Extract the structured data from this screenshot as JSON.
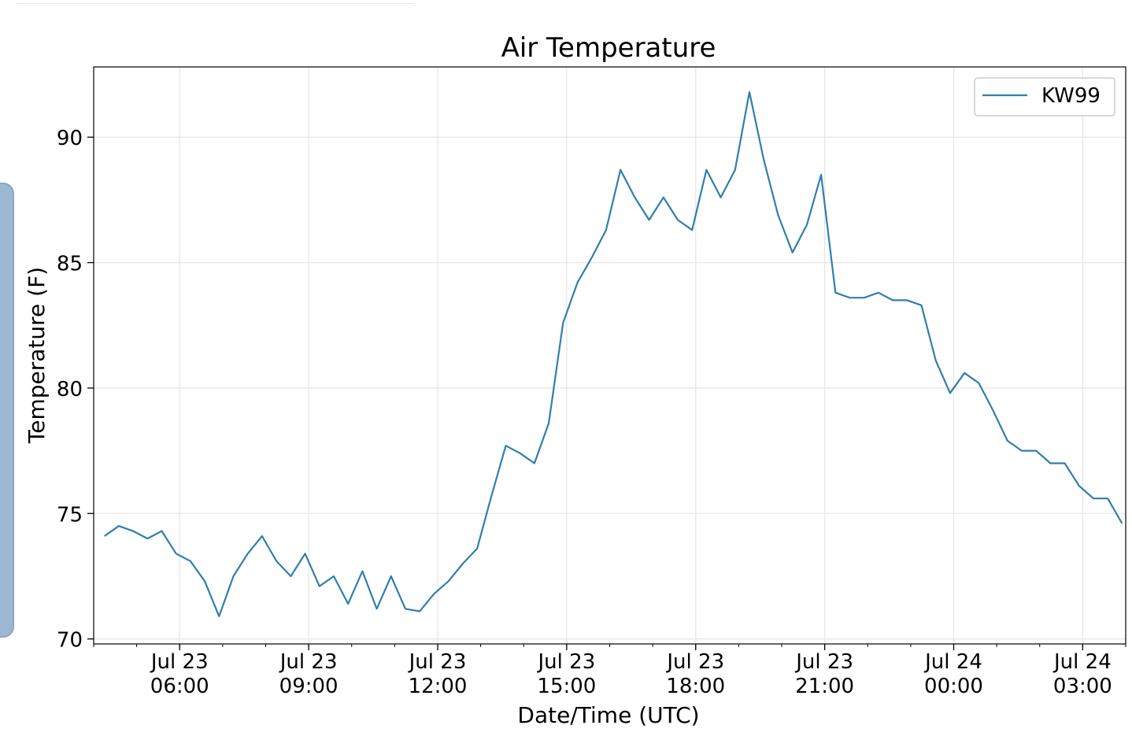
{
  "chart_data": {
    "type": "line",
    "title": "Air Temperature",
    "xlabel": "Date/Time (UTC)",
    "ylabel": "Temperature (F)",
    "xlim": [
      "2019-07-23 04:00",
      "2019-07-24 04:00"
    ],
    "ylim": [
      69.8,
      92.8
    ],
    "grid": true,
    "legend_position": "top-right",
    "line_color": "#2f7fad",
    "yticks": [
      {
        "value": 70,
        "label": "70"
      },
      {
        "value": 75,
        "label": "75"
      },
      {
        "value": 80,
        "label": "80"
      },
      {
        "value": 85,
        "label": "85"
      },
      {
        "value": 90,
        "label": "90"
      }
    ],
    "xticks": [
      {
        "time": "2019-07-23 06:00",
        "line1": "Jul 23",
        "line2": "06:00"
      },
      {
        "time": "2019-07-23 09:00",
        "line1": "Jul 23",
        "line2": "09:00"
      },
      {
        "time": "2019-07-23 12:00",
        "line1": "Jul 23",
        "line2": "12:00"
      },
      {
        "time": "2019-07-23 15:00",
        "line1": "Jul 23",
        "line2": "15:00"
      },
      {
        "time": "2019-07-23 18:00",
        "line1": "Jul 23",
        "line2": "18:00"
      },
      {
        "time": "2019-07-23 21:00",
        "line1": "Jul 23",
        "line2": "21:00"
      },
      {
        "time": "2019-07-24 00:00",
        "line1": "Jul 24",
        "line2": "00:00"
      },
      {
        "time": "2019-07-24 03:00",
        "line1": "Jul 24",
        "line2": "03:00"
      }
    ],
    "series": [
      {
        "name": "KW99",
        "points": [
          [
            "2019-07-23 04:15",
            74.1
          ],
          [
            "2019-07-23 04:35",
            74.5
          ],
          [
            "2019-07-23 04:55",
            74.3
          ],
          [
            "2019-07-23 05:15",
            74.0
          ],
          [
            "2019-07-23 05:35",
            74.3
          ],
          [
            "2019-07-23 05:55",
            73.4
          ],
          [
            "2019-07-23 06:15",
            73.1
          ],
          [
            "2019-07-23 06:35",
            72.3
          ],
          [
            "2019-07-23 06:55",
            70.9
          ],
          [
            "2019-07-23 07:15",
            72.5
          ],
          [
            "2019-07-23 07:35",
            73.4
          ],
          [
            "2019-07-23 07:55",
            74.1
          ],
          [
            "2019-07-23 08:15",
            73.1
          ],
          [
            "2019-07-23 08:35",
            72.5
          ],
          [
            "2019-07-23 08:55",
            73.4
          ],
          [
            "2019-07-23 09:15",
            72.1
          ],
          [
            "2019-07-23 09:35",
            72.5
          ],
          [
            "2019-07-23 09:55",
            71.4
          ],
          [
            "2019-07-23 10:15",
            72.7
          ],
          [
            "2019-07-23 10:35",
            71.2
          ],
          [
            "2019-07-23 10:55",
            72.5
          ],
          [
            "2019-07-23 11:15",
            71.2
          ],
          [
            "2019-07-23 11:35",
            71.1
          ],
          [
            "2019-07-23 11:55",
            71.8
          ],
          [
            "2019-07-23 12:15",
            72.3
          ],
          [
            "2019-07-23 12:35",
            73.0
          ],
          [
            "2019-07-23 12:55",
            73.6
          ],
          [
            "2019-07-23 13:15",
            75.7
          ],
          [
            "2019-07-23 13:35",
            77.7
          ],
          [
            "2019-07-23 13:55",
            77.4
          ],
          [
            "2019-07-23 14:15",
            77.0
          ],
          [
            "2019-07-23 14:35",
            78.6
          ],
          [
            "2019-07-23 14:55",
            82.6
          ],
          [
            "2019-07-23 15:15",
            84.2
          ],
          [
            "2019-07-23 15:35",
            85.2
          ],
          [
            "2019-07-23 15:55",
            86.3
          ],
          [
            "2019-07-23 16:15",
            88.7
          ],
          [
            "2019-07-23 16:35",
            87.6
          ],
          [
            "2019-07-23 16:55",
            86.7
          ],
          [
            "2019-07-23 17:15",
            87.6
          ],
          [
            "2019-07-23 17:35",
            86.7
          ],
          [
            "2019-07-23 17:55",
            86.3
          ],
          [
            "2019-07-23 18:15",
            88.7
          ],
          [
            "2019-07-23 18:35",
            87.6
          ],
          [
            "2019-07-23 18:55",
            88.7
          ],
          [
            "2019-07-23 19:15",
            91.8
          ],
          [
            "2019-07-23 19:35",
            89.1
          ],
          [
            "2019-07-23 19:55",
            86.9
          ],
          [
            "2019-07-23 20:15",
            85.4
          ],
          [
            "2019-07-23 20:35",
            86.5
          ],
          [
            "2019-07-23 20:55",
            88.5
          ],
          [
            "2019-07-23 21:15",
            83.8
          ],
          [
            "2019-07-23 21:35",
            83.6
          ],
          [
            "2019-07-23 21:55",
            83.6
          ],
          [
            "2019-07-23 22:15",
            83.8
          ],
          [
            "2019-07-23 22:35",
            83.5
          ],
          [
            "2019-07-23 22:55",
            83.5
          ],
          [
            "2019-07-23 23:15",
            83.3
          ],
          [
            "2019-07-23 23:35",
            81.1
          ],
          [
            "2019-07-23 23:55",
            79.8
          ],
          [
            "2019-07-24 00:15",
            80.6
          ],
          [
            "2019-07-24 00:35",
            80.2
          ],
          [
            "2019-07-24 00:55",
            79.1
          ],
          [
            "2019-07-24 01:15",
            77.9
          ],
          [
            "2019-07-24 01:35",
            77.5
          ],
          [
            "2019-07-24 01:55",
            77.5
          ],
          [
            "2019-07-24 02:15",
            77.0
          ],
          [
            "2019-07-24 02:35",
            77.0
          ],
          [
            "2019-07-24 02:55",
            76.1
          ],
          [
            "2019-07-24 03:15",
            75.6
          ],
          [
            "2019-07-24 03:35",
            75.6
          ],
          [
            "2019-07-24 03:55",
            74.6
          ]
        ]
      }
    ]
  }
}
